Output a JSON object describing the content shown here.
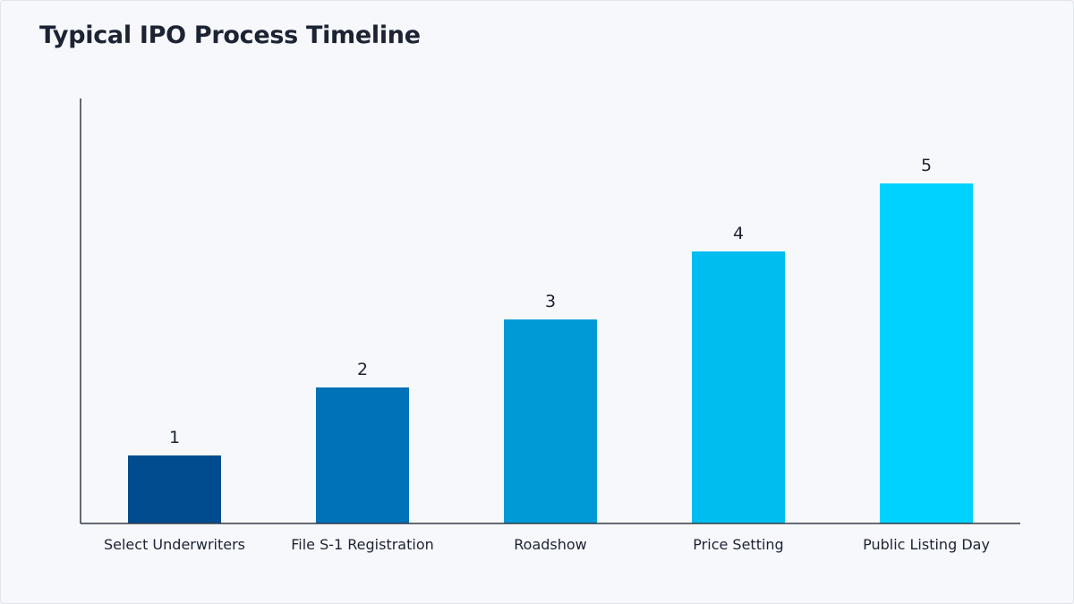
{
  "chart_data": {
    "type": "bar",
    "title": "Typical IPO Process Timeline",
    "xlabel": "",
    "ylabel": "",
    "categories": [
      "Select Underwriters",
      "File S-1 Registration",
      "Roadshow",
      "Price Setting",
      "Public Listing Day"
    ],
    "values": [
      1,
      2,
      3,
      4,
      5
    ],
    "data_labels": [
      "1",
      "2",
      "3",
      "4",
      "5"
    ],
    "colors": [
      "#004c8f",
      "#0072b8",
      "#009ad6",
      "#00bdf0",
      "#00d2ff"
    ],
    "ylim": [
      0,
      6.25
    ],
    "grid": false,
    "legend": "none",
    "axis_color": "#333a44"
  }
}
